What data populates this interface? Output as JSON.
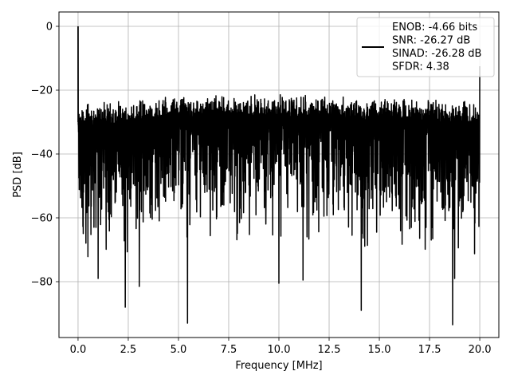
{
  "chart_data": {
    "type": "line",
    "xlabel": "Frequency [MHz]",
    "ylabel": "PSD [dB]",
    "xlim": [
      -0.95,
      20.95
    ],
    "ylim": [
      -97.5,
      4.5
    ],
    "xticks": [
      0.0,
      2.5,
      5.0,
      7.5,
      10.0,
      12.5,
      15.0,
      17.5,
      20.0
    ],
    "xtick_labels": [
      "0.0",
      "2.5",
      "5.0",
      "7.5",
      "10.0",
      "12.5",
      "15.0",
      "17.5",
      "20.0"
    ],
    "yticks": [
      0,
      -20,
      -40,
      -60,
      -80
    ],
    "ytick_labels": [
      "0",
      "−20",
      "−40",
      "−60",
      "−80"
    ],
    "grid": true,
    "legend_position": "upper-right",
    "line_color": "#000000",
    "series": [
      {
        "name": "ENOB: -4.66 bits\nSNR: -26.27 dB\nSINAD: -26.28 dB\nSFDR: 4.38",
        "legend_lines": [
          "ENOB: -4.66 bits",
          "SNR: -26.27 dB",
          "SINAD: -26.28 dB",
          "SFDR: 4.38"
        ],
        "description_note": null,
        "x_start": 0.0,
        "x_end": 20.0,
        "upper_envelope_x": [
          0.0,
          0.06,
          0.2,
          1.0,
          2.0,
          3.0,
          4.0,
          5.0,
          6.0,
          7.0,
          8.0,
          9.0,
          10.0,
          11.0,
          12.0,
          13.0,
          14.0,
          15.0,
          16.0,
          17.0,
          18.0,
          19.0,
          20.0
        ],
        "upper_envelope_y": [
          -24.5,
          -24.0,
          -24.0,
          -23.5,
          -23.0,
          -22.5,
          -22.0,
          -21.5,
          -21.0,
          -21.0,
          -21.0,
          -21.0,
          -21.0,
          -21.0,
          -21.0,
          -21.5,
          -22.0,
          -22.0,
          -22.0,
          -22.5,
          -23.0,
          -23.0,
          -23.5
        ],
        "lower_envelope_x": [
          0.0,
          1.0,
          2.0,
          3.0,
          4.0,
          5.0,
          6.0,
          7.0,
          8.0,
          9.0,
          10.0,
          11.0,
          12.0,
          13.0,
          14.0,
          15.0,
          16.0,
          17.0,
          18.0,
          19.0,
          20.0
        ],
        "lower_envelope_y": [
          -66.0,
          -68.0,
          -66.0,
          -64.0,
          -63.0,
          -62.0,
          -61.0,
          -61.0,
          -61.0,
          -61.0,
          -61.0,
          -61.0,
          -62.0,
          -62.0,
          -63.0,
          -63.0,
          -64.0,
          -65.0,
          -65.0,
          -66.0,
          -66.0
        ],
        "peaks": [
          {
            "x": 0.0,
            "y": 0.0
          },
          {
            "x": 10.0,
            "y": -17.5
          },
          {
            "x": 20.0,
            "y": -12.5
          }
        ],
        "dips": [
          {
            "x": 1.0,
            "y": -79.0
          },
          {
            "x": 2.35,
            "y": -88.0
          },
          {
            "x": 3.05,
            "y": -81.5
          },
          {
            "x": 5.45,
            "y": -93.0
          },
          {
            "x": 10.0,
            "y": -80.5
          },
          {
            "x": 11.2,
            "y": -79.5
          },
          {
            "x": 14.1,
            "y": -89.0
          },
          {
            "x": 18.65,
            "y": -93.5
          },
          {
            "x": 18.75,
            "y": -79.0
          }
        ]
      }
    ]
  }
}
